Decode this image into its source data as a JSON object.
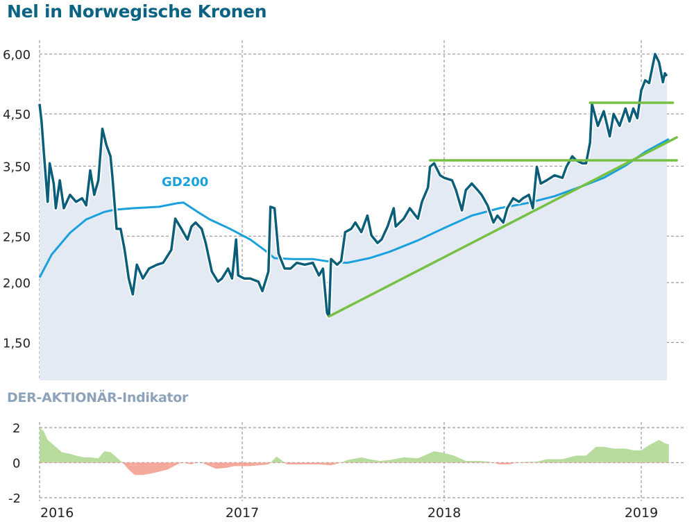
{
  "title": "Nel in Norwegische Kronen",
  "indicator_title": "DER-AKTIONÄR-Indikator",
  "colors": {
    "price": "#0b5e7a",
    "gd200": "#1aa0dc",
    "trend": "#76c043",
    "area": "#e4eaf3",
    "positive": "#b7dc9e",
    "negative": "#f4a99b",
    "title": "#0b6384",
    "indicator_title": "#8da3ba"
  },
  "chart_data": [
    {
      "type": "line",
      "title": "Nel in Norwegische Kronen",
      "y_scale": "log",
      "ylim": [
        1.25,
        6.37
      ],
      "xlim": [
        2016.0,
        2019.21
      ],
      "grid": true,
      "y_ticks": [
        {
          "value": 6.0,
          "label": "6,00"
        },
        {
          "value": 4.5,
          "label": "4,50"
        },
        {
          "value": 3.5,
          "label": "3,50"
        },
        {
          "value": 2.5,
          "label": "2,50"
        },
        {
          "value": 2.0,
          "label": "2,00"
        },
        {
          "value": 1.5,
          "label": "1,50"
        }
      ],
      "x_ticks": [
        {
          "value": 2016,
          "label": "2016"
        },
        {
          "value": 2017,
          "label": "2017"
        },
        {
          "value": 2018,
          "label": "2018"
        },
        {
          "value": 2019,
          "label": "2019"
        }
      ],
      "series": [
        {
          "key": "price",
          "style": "filled-line",
          "x": [
            2016.0,
            2016.01,
            2016.02,
            2016.04,
            2016.05,
            2016.07,
            2016.08,
            2016.1,
            2016.12,
            2016.15,
            2016.18,
            2016.21,
            2016.23,
            2016.25,
            2016.27,
            2016.29,
            2016.31,
            2016.33,
            2016.35,
            2016.36,
            2016.38,
            2016.4,
            2016.42,
            2016.44,
            2016.46,
            2016.48,
            2016.51,
            2016.54,
            2016.58,
            2016.61,
            2016.65,
            2016.67,
            2016.7,
            2016.73,
            2016.75,
            2016.77,
            2016.8,
            2016.82,
            2016.85,
            2016.88,
            2016.9,
            2016.93,
            2016.95,
            2016.97,
            2016.98,
            2017.01,
            2017.04,
            2017.08,
            2017.1,
            2017.13,
            2017.14,
            2017.16,
            2017.18,
            2017.21,
            2017.24,
            2017.27,
            2017.31,
            2017.35,
            2017.38,
            2017.4,
            2017.42,
            2017.43,
            2017.44,
            2017.47,
            2017.49,
            2017.51,
            2017.54,
            2017.56,
            2017.59,
            2017.62,
            2017.64,
            2017.67,
            2017.69,
            2017.72,
            2017.75,
            2017.76,
            2017.8,
            2017.83,
            2017.87,
            2017.89,
            2017.92,
            2017.93,
            2017.95,
            2017.98,
            2018.0,
            2018.04,
            2018.06,
            2018.09,
            2018.11,
            2018.14,
            2018.17,
            2018.19,
            2018.22,
            2018.25,
            2018.27,
            2018.3,
            2018.32,
            2018.35,
            2018.38,
            2018.4,
            2018.43,
            2018.45,
            2018.47,
            2018.49,
            2018.52,
            2018.56,
            2018.6,
            2018.62,
            2018.65,
            2018.67,
            2018.7,
            2018.72,
            2018.74,
            2018.75,
            2018.78,
            2018.81,
            2018.84,
            2018.86,
            2018.89,
            2018.92,
            2018.94,
            2018.96,
            2018.98,
            2019.0,
            2019.02,
            2019.04,
            2019.05,
            2019.07,
            2019.09,
            2019.11,
            2019.12,
            2019.13
          ],
          "y": [
            4.72,
            4.34,
            3.8,
            2.95,
            3.55,
            3.22,
            2.86,
            3.27,
            2.86,
            3.05,
            2.95,
            3.0,
            2.9,
            3.43,
            3.05,
            3.27,
            4.19,
            3.87,
            3.67,
            3.31,
            2.59,
            2.59,
            2.34,
            2.04,
            1.89,
            2.18,
            2.04,
            2.14,
            2.18,
            2.2,
            2.34,
            2.72,
            2.59,
            2.46,
            2.62,
            2.67,
            2.59,
            2.42,
            2.11,
            2.01,
            2.04,
            2.14,
            2.04,
            2.46,
            2.07,
            2.04,
            2.04,
            2.01,
            1.92,
            2.11,
            2.88,
            2.86,
            2.3,
            2.14,
            2.14,
            2.2,
            2.18,
            2.2,
            2.07,
            2.14,
            1.73,
            1.7,
            2.24,
            2.18,
            2.22,
            2.55,
            2.59,
            2.67,
            2.55,
            2.76,
            2.51,
            2.42,
            2.46,
            2.62,
            2.86,
            2.62,
            2.72,
            2.86,
            2.72,
            2.95,
            3.16,
            3.49,
            3.55,
            3.35,
            3.31,
            3.27,
            3.12,
            2.83,
            3.12,
            3.22,
            3.12,
            3.05,
            2.9,
            2.67,
            2.76,
            2.67,
            2.86,
            3.0,
            2.95,
            3.0,
            3.05,
            2.86,
            3.49,
            3.22,
            3.27,
            3.35,
            3.31,
            3.49,
            3.67,
            3.6,
            3.55,
            3.55,
            3.92,
            4.72,
            4.25,
            4.56,
            4.04,
            4.5,
            4.25,
            4.62,
            4.34,
            4.62,
            4.41,
            5.04,
            5.29,
            5.22,
            5.47,
            6.0,
            5.77,
            5.24,
            5.47,
            5.4
          ]
        },
        {
          "key": "gd200",
          "name": "GD200",
          "x": [
            2016.0,
            2016.06,
            2016.15,
            2016.23,
            2016.32,
            2016.37,
            2016.46,
            2016.59,
            2016.68,
            2016.71,
            2016.78,
            2016.84,
            2016.94,
            2017.04,
            2017.11,
            2017.16,
            2017.25,
            2017.35,
            2017.44,
            2017.52,
            2017.63,
            2017.73,
            2017.87,
            2018.0,
            2018.14,
            2018.28,
            2018.42,
            2018.56,
            2018.7,
            2018.81,
            2018.92,
            2019.02,
            2019.14
          ],
          "y": [
            2.05,
            2.29,
            2.54,
            2.71,
            2.81,
            2.84,
            2.86,
            2.88,
            2.93,
            2.94,
            2.81,
            2.71,
            2.59,
            2.46,
            2.34,
            2.25,
            2.24,
            2.24,
            2.21,
            2.2,
            2.25,
            2.32,
            2.45,
            2.6,
            2.76,
            2.86,
            2.93,
            3.03,
            3.18,
            3.31,
            3.51,
            3.75,
            3.99
          ]
        },
        {
          "key": "trendline",
          "x": [
            2017.43,
            2019.18
          ],
          "y": [
            1.7,
            4.02
          ]
        },
        {
          "key": "resistance-1",
          "x": [
            2017.93,
            2019.18
          ],
          "y": [
            3.6,
            3.6
          ]
        },
        {
          "key": "resistance-2",
          "x": [
            2018.74,
            2019.16
          ],
          "y": [
            4.75,
            4.75
          ]
        }
      ]
    },
    {
      "type": "area",
      "title": "DER-AKTIONÄR-Indikator",
      "ylim": [
        -2,
        2
      ],
      "xlim": [
        2016.0,
        2019.21
      ],
      "grid": true,
      "y_ticks": [
        {
          "value": 2,
          "label": "2"
        },
        {
          "value": 0,
          "label": "0"
        },
        {
          "value": -2,
          "label": "-2"
        }
      ],
      "x_ticks": [
        {
          "value": 2016,
          "label": "2016"
        },
        {
          "value": 2017,
          "label": "2017"
        },
        {
          "value": 2018,
          "label": "2018"
        },
        {
          "value": 2019,
          "label": "2019"
        }
      ],
      "x": [
        2016.0,
        2016.02,
        2016.04,
        2016.07,
        2016.11,
        2016.15,
        2016.18,
        2016.22,
        2016.25,
        2016.29,
        2016.32,
        2016.35,
        2016.38,
        2016.41,
        2016.44,
        2016.47,
        2016.51,
        2016.56,
        2016.63,
        2016.68,
        2016.7,
        2016.75,
        2016.77,
        2016.8,
        2016.84,
        2016.87,
        2016.92,
        2016.96,
        2017.04,
        2017.13,
        2017.14,
        2017.17,
        2017.2,
        2017.22,
        2017.28,
        2017.38,
        2017.44,
        2017.49,
        2017.52,
        2017.59,
        2017.63,
        2017.68,
        2017.73,
        2017.8,
        2017.87,
        2017.95,
        2018.0,
        2018.05,
        2018.11,
        2018.18,
        2018.23,
        2018.28,
        2018.33,
        2018.37,
        2018.42,
        2018.47,
        2018.52,
        2018.6,
        2018.67,
        2018.72,
        2018.77,
        2018.81,
        2018.86,
        2018.92,
        2018.96,
        2019.0,
        2019.04,
        2019.09,
        2019.12,
        2019.14
      ],
      "values": [
        2.0,
        1.8,
        1.3,
        1.0,
        0.6,
        0.5,
        0.4,
        0.3,
        0.3,
        0.25,
        0.65,
        0.6,
        0.3,
        0.0,
        -0.4,
        -0.7,
        -0.7,
        -0.6,
        -0.4,
        -0.1,
        0,
        -0.1,
        0,
        0,
        -0.2,
        -0.35,
        -0.3,
        -0.2,
        -0.2,
        -0.1,
        0,
        0.35,
        0.1,
        -0.1,
        -0.1,
        -0.1,
        -0.15,
        0,
        0.15,
        0.3,
        0.2,
        0.1,
        0.15,
        0.3,
        0.25,
        0.65,
        0.55,
        0.4,
        0.1,
        0.1,
        0.05,
        -0.1,
        -0.1,
        0,
        0.05,
        0.05,
        0.2,
        0.2,
        0.4,
        0.4,
        0.9,
        0.9,
        0.8,
        0.8,
        0.7,
        0.7,
        1.0,
        1.3,
        1.1,
        1.05
      ]
    }
  ]
}
